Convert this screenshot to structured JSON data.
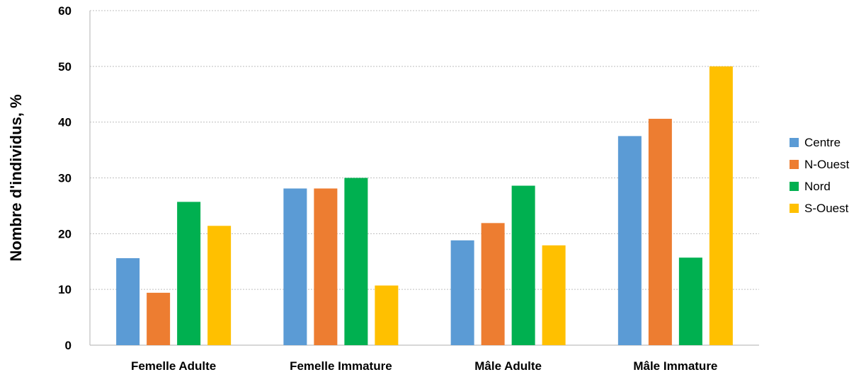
{
  "chart_data": {
    "type": "bar",
    "categories": [
      "Femelle Adulte",
      "Femelle Immature",
      "Mâle Adulte",
      "Mâle Immature"
    ],
    "series": [
      {
        "name": "Centre",
        "color": "#5B9BD5",
        "values": [
          15.6,
          28.1,
          18.8,
          37.5
        ]
      },
      {
        "name": "N-Ouest",
        "color": "#ED7D31",
        "values": [
          9.4,
          28.1,
          21.9,
          40.6
        ]
      },
      {
        "name": "Nord",
        "color": "#00B050",
        "values": [
          25.7,
          30.0,
          28.6,
          15.7
        ]
      },
      {
        "name": "S-Ouest",
        "color": "#FFC000",
        "values": [
          21.4,
          10.7,
          17.9,
          50.0
        ]
      }
    ],
    "title": "",
    "xlabel": "",
    "ylabel": "Nombre d'individus, %",
    "ylim": [
      0,
      60
    ],
    "yticks": [
      0,
      10,
      20,
      30,
      40,
      50,
      60
    ],
    "grid": "horizontal dotted",
    "legend_position": "right"
  }
}
